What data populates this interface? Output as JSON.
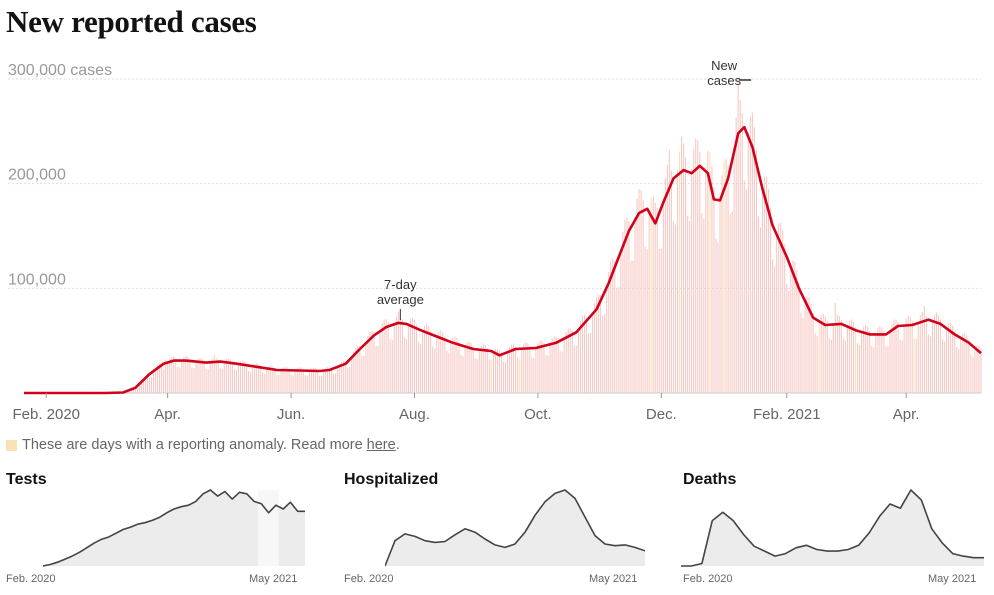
{
  "title": "New reported cases",
  "colors": {
    "bar": "#f7c9c4",
    "anomaly": "#fbe2b6",
    "line": "#d0021b",
    "grid": "#dddddd",
    "mini_fill": "#ececec",
    "mini_line": "#444444"
  },
  "anomaly_note": {
    "text": "These are days with a reporting anomaly. Read more",
    "link_text": "here",
    "suffix": "."
  },
  "chart_data": [
    {
      "type": "bar",
      "title": "New reported cases",
      "y_unit_label": "cases",
      "ylim": [
        0,
        300000
      ],
      "y_ticks": [
        {
          "value": 300000,
          "label": "300,000"
        },
        {
          "value": 200000,
          "label": "200,000"
        },
        {
          "value": 100000,
          "label": "100,000"
        }
      ],
      "x_range": [
        "2020-01-21",
        "2021-05-08"
      ],
      "x_ticks": [
        {
          "date": "2020-02-01",
          "label": "Feb. 2020"
        },
        {
          "date": "2020-04-01",
          "label": "Apr."
        },
        {
          "date": "2020-06-01",
          "label": "Jun."
        },
        {
          "date": "2020-08-01",
          "label": "Aug."
        },
        {
          "date": "2020-10-01",
          "label": "Oct."
        },
        {
          "date": "2020-12-01",
          "label": "Dec."
        },
        {
          "date": "2021-02-01",
          "label": "Feb. 2021"
        },
        {
          "date": "2021-04-01",
          "label": "Apr."
        }
      ],
      "grid": true,
      "series": [
        {
          "name": "7-day average",
          "type": "line",
          "points": [
            [
              "2020-01-21",
              0
            ],
            [
              "2020-03-01",
              0
            ],
            [
              "2020-03-10",
              500
            ],
            [
              "2020-03-16",
              5000
            ],
            [
              "2020-03-23",
              18000
            ],
            [
              "2020-03-30",
              28000
            ],
            [
              "2020-04-04",
              31000
            ],
            [
              "2020-04-10",
              31000
            ],
            [
              "2020-04-20",
              29000
            ],
            [
              "2020-04-27",
              30000
            ],
            [
              "2020-05-05",
              28000
            ],
            [
              "2020-05-15",
              25000
            ],
            [
              "2020-05-25",
              22000
            ],
            [
              "2020-06-05",
              21500
            ],
            [
              "2020-06-15",
              21000
            ],
            [
              "2020-06-20",
              22000
            ],
            [
              "2020-06-28",
              28000
            ],
            [
              "2020-07-05",
              42000
            ],
            [
              "2020-07-12",
              55000
            ],
            [
              "2020-07-18",
              63000
            ],
            [
              "2020-07-24",
              67000
            ],
            [
              "2020-07-28",
              66000
            ],
            [
              "2020-08-04",
              60000
            ],
            [
              "2020-08-12",
              54000
            ],
            [
              "2020-08-20",
              48000
            ],
            [
              "2020-08-30",
              42000
            ],
            [
              "2020-09-08",
              40000
            ],
            [
              "2020-09-12",
              36000
            ],
            [
              "2020-09-20",
              42000
            ],
            [
              "2020-09-30",
              43000
            ],
            [
              "2020-10-10",
              48000
            ],
            [
              "2020-10-20",
              58000
            ],
            [
              "2020-10-30",
              80000
            ],
            [
              "2020-11-05",
              105000
            ],
            [
              "2020-11-10",
              130000
            ],
            [
              "2020-11-15",
              155000
            ],
            [
              "2020-11-20",
              172000
            ],
            [
              "2020-11-24",
              176000
            ],
            [
              "2020-11-28",
              162000
            ],
            [
              "2020-12-02",
              182000
            ],
            [
              "2020-12-07",
              205000
            ],
            [
              "2020-12-12",
              213000
            ],
            [
              "2020-12-16",
              210000
            ],
            [
              "2020-12-20",
              217000
            ],
            [
              "2020-12-24",
              210000
            ],
            [
              "2020-12-27",
              185000
            ],
            [
              "2020-12-30",
              184000
            ],
            [
              "2021-01-03",
              205000
            ],
            [
              "2021-01-08",
              248000
            ],
            [
              "2021-01-11",
              254000
            ],
            [
              "2021-01-15",
              235000
            ],
            [
              "2021-01-20",
              195000
            ],
            [
              "2021-01-25",
              160000
            ],
            [
              "2021-02-01",
              130000
            ],
            [
              "2021-02-07",
              100000
            ],
            [
              "2021-02-14",
              72000
            ],
            [
              "2021-02-20",
              65000
            ],
            [
              "2021-02-28",
              66000
            ],
            [
              "2021-03-07",
              60000
            ],
            [
              "2021-03-14",
              56000
            ],
            [
              "2021-03-22",
              56000
            ],
            [
              "2021-03-28",
              64000
            ],
            [
              "2021-04-04",
              65000
            ],
            [
              "2021-04-12",
              70000
            ],
            [
              "2021-04-18",
              66000
            ],
            [
              "2021-04-25",
              56000
            ],
            [
              "2021-05-02",
              48000
            ],
            [
              "2021-05-08",
              38000
            ]
          ],
          "annotation": {
            "text": [
              "7-day",
              "average"
            ],
            "date": "2020-07-25"
          }
        },
        {
          "name": "New cases",
          "type": "bar",
          "points": [
            [
              "2020-03-10",
              800
            ],
            [
              "2020-03-31",
              32000
            ],
            [
              "2020-04-24",
              36000
            ],
            [
              "2020-07-24",
              78000
            ],
            [
              "2020-11-20",
              195000
            ],
            [
              "2020-12-05",
              232000
            ],
            [
              "2020-12-11",
              245000
            ],
            [
              "2021-01-08",
              300000
            ],
            [
              "2021-02-25",
              86000
            ],
            [
              "2021-04-10",
              83000
            ]
          ],
          "annotation": {
            "text": [
              "New",
              "cases"
            ],
            "date": "2021-01-07"
          }
        }
      ],
      "anomaly_dates": [
        "2020-09-08",
        "2020-09-22",
        "2020-11-26",
        "2020-12-10",
        "2020-12-25",
        "2021-01-01",
        "2021-02-17",
        "2021-03-07",
        "2021-04-05"
      ]
    },
    {
      "type": "area",
      "title": "Tests",
      "x_labels": [
        "Feb. 2020",
        "May 2021"
      ],
      "values": [
        0,
        2,
        5,
        9,
        13,
        18,
        24,
        30,
        35,
        38,
        43,
        48,
        51,
        55,
        57,
        60,
        64,
        70,
        75,
        78,
        80,
        85,
        95,
        100,
        92,
        98,
        88,
        97,
        95,
        85,
        82,
        70,
        80,
        75,
        84,
        72,
        72
      ],
      "anomaly_range": [
        0.82,
        0.9
      ]
    },
    {
      "type": "area",
      "title": "Hospitalized",
      "x_labels": [
        "Feb. 2020",
        "May 2021"
      ],
      "values": [
        0,
        30,
        38,
        35,
        30,
        28,
        29,
        37,
        44,
        40,
        32,
        25,
        22,
        26,
        40,
        60,
        76,
        86,
        90,
        80,
        58,
        36,
        26,
        24,
        25,
        22,
        18
      ]
    },
    {
      "type": "area",
      "title": "Deaths",
      "x_labels": [
        "Feb. 2020",
        "May 2021"
      ],
      "values": [
        0,
        0,
        3,
        55,
        65,
        55,
        38,
        24,
        18,
        12,
        15,
        22,
        25,
        20,
        18,
        18,
        20,
        25,
        40,
        60,
        75,
        70,
        92,
        80,
        45,
        28,
        15,
        12,
        10,
        10
      ]
    }
  ]
}
